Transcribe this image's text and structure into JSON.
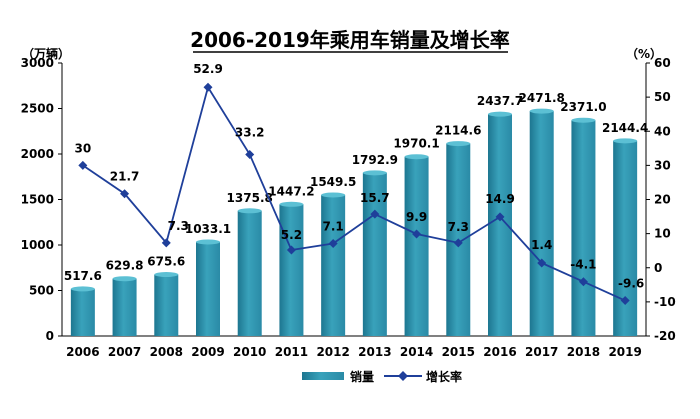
{
  "chart_data": {
    "type": "bar+line",
    "title": "2006-2019年乘用车销量及增长率",
    "left_unit": "（万辆）",
    "right_unit": "（%）",
    "categories": [
      "2006",
      "2007",
      "2008",
      "2009",
      "2010",
      "2011",
      "2012",
      "2013",
      "2014",
      "2015",
      "2016",
      "2017",
      "2018",
      "2019"
    ],
    "series": [
      {
        "name": "销量",
        "type": "bar",
        "axis": "left",
        "values": [
          517.6,
          629.8,
          675.6,
          1033.1,
          1375.8,
          1447.2,
          1549.5,
          1792.9,
          1970.1,
          2114.6,
          2437.7,
          2471.8,
          2371.0,
          2144.4
        ],
        "labels": [
          "517.6",
          "629.8",
          "675.6",
          "1033.1",
          "1375.8",
          "1447.2",
          "1549.5",
          "1792.9",
          "1970.1",
          "2114.6",
          "2437.7",
          "2471.8",
          "2371.0",
          "2144.4"
        ]
      },
      {
        "name": "增长率",
        "type": "line",
        "axis": "right",
        "values": [
          30,
          21.7,
          7.3,
          52.9,
          33.2,
          5.2,
          7.1,
          15.7,
          9.9,
          7.3,
          14.9,
          1.4,
          -4.1,
          -9.6
        ],
        "labels": [
          "30",
          "21.7",
          "7.3",
          "52.9",
          "33.2",
          "5.2",
          "7.1",
          "15.7",
          "9.9",
          "7.3",
          "14.9",
          "1.4",
          "-4.1",
          "-9.6"
        ]
      }
    ],
    "left_axis": {
      "min": 0,
      "max": 3000,
      "step": 500,
      "ticks": [
        "0",
        "500",
        "1000",
        "1500",
        "2000",
        "2500",
        "3000"
      ]
    },
    "right_axis": {
      "min": -20,
      "max": 60,
      "step": 10,
      "ticks": [
        "-20",
        "-10",
        "0",
        "10",
        "20",
        "30",
        "40",
        "50",
        "60"
      ]
    },
    "legend_position": "bottom-center",
    "colors": {
      "bar_top": "#4fb3c9",
      "bar_bottom": "#1f7f99",
      "line": "#1f3f9a"
    }
  }
}
